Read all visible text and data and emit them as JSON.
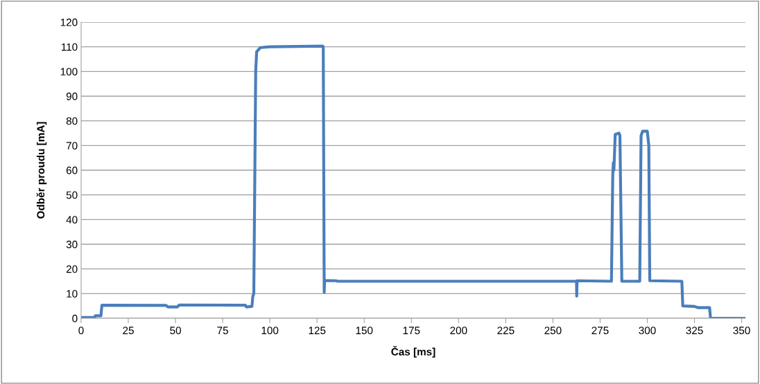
{
  "chart_data": {
    "type": "line",
    "xlabel": "Čas [ms]",
    "ylabel": "Odběr proudu [mA]",
    "x": [
      0,
      7,
      7.5,
      10.5,
      11,
      45,
      46,
      51,
      52,
      87,
      87.5,
      90.5,
      91,
      91.5,
      92.5,
      93,
      95,
      100,
      128,
      128.3,
      128.8,
      129,
      135,
      136,
      262,
      262.5,
      262.6,
      262.8,
      281,
      281.7,
      282,
      282.3,
      283,
      285,
      285.5,
      286.5,
      296,
      296.7,
      297.5,
      300,
      300.8,
      301.3,
      318.3,
      318.8,
      325,
      327,
      333,
      333.5,
      352
    ],
    "series": [
      {
        "color": "#4a7ebb",
        "values": [
          0.3,
          0.3,
          1,
          1,
          5.3,
          5.2,
          4.6,
          4.6,
          5.4,
          5.3,
          4.6,
          4.8,
          9,
          10,
          100,
          108,
          109.7,
          110,
          110.3,
          110,
          10.5,
          15.3,
          15.2,
          15,
          15,
          15,
          9,
          15.2,
          15,
          58,
          63,
          60,
          74.5,
          75,
          74,
          15,
          15,
          74,
          75.8,
          75.8,
          70,
          15.2,
          15,
          5,
          4.8,
          4.3,
          4.3,
          0,
          0
        ]
      }
    ],
    "xlim": [
      0,
      352
    ],
    "xticks": [
      0,
      25,
      50,
      75,
      100,
      125,
      150,
      175,
      200,
      225,
      250,
      275,
      300,
      325,
      350
    ],
    "ylim": [
      0,
      120
    ],
    "yticks": [
      0,
      10,
      20,
      30,
      40,
      50,
      60,
      70,
      80,
      90,
      100,
      110,
      120
    ],
    "grid": "y",
    "legend": false,
    "marker": "none",
    "line_style": "solid"
  }
}
